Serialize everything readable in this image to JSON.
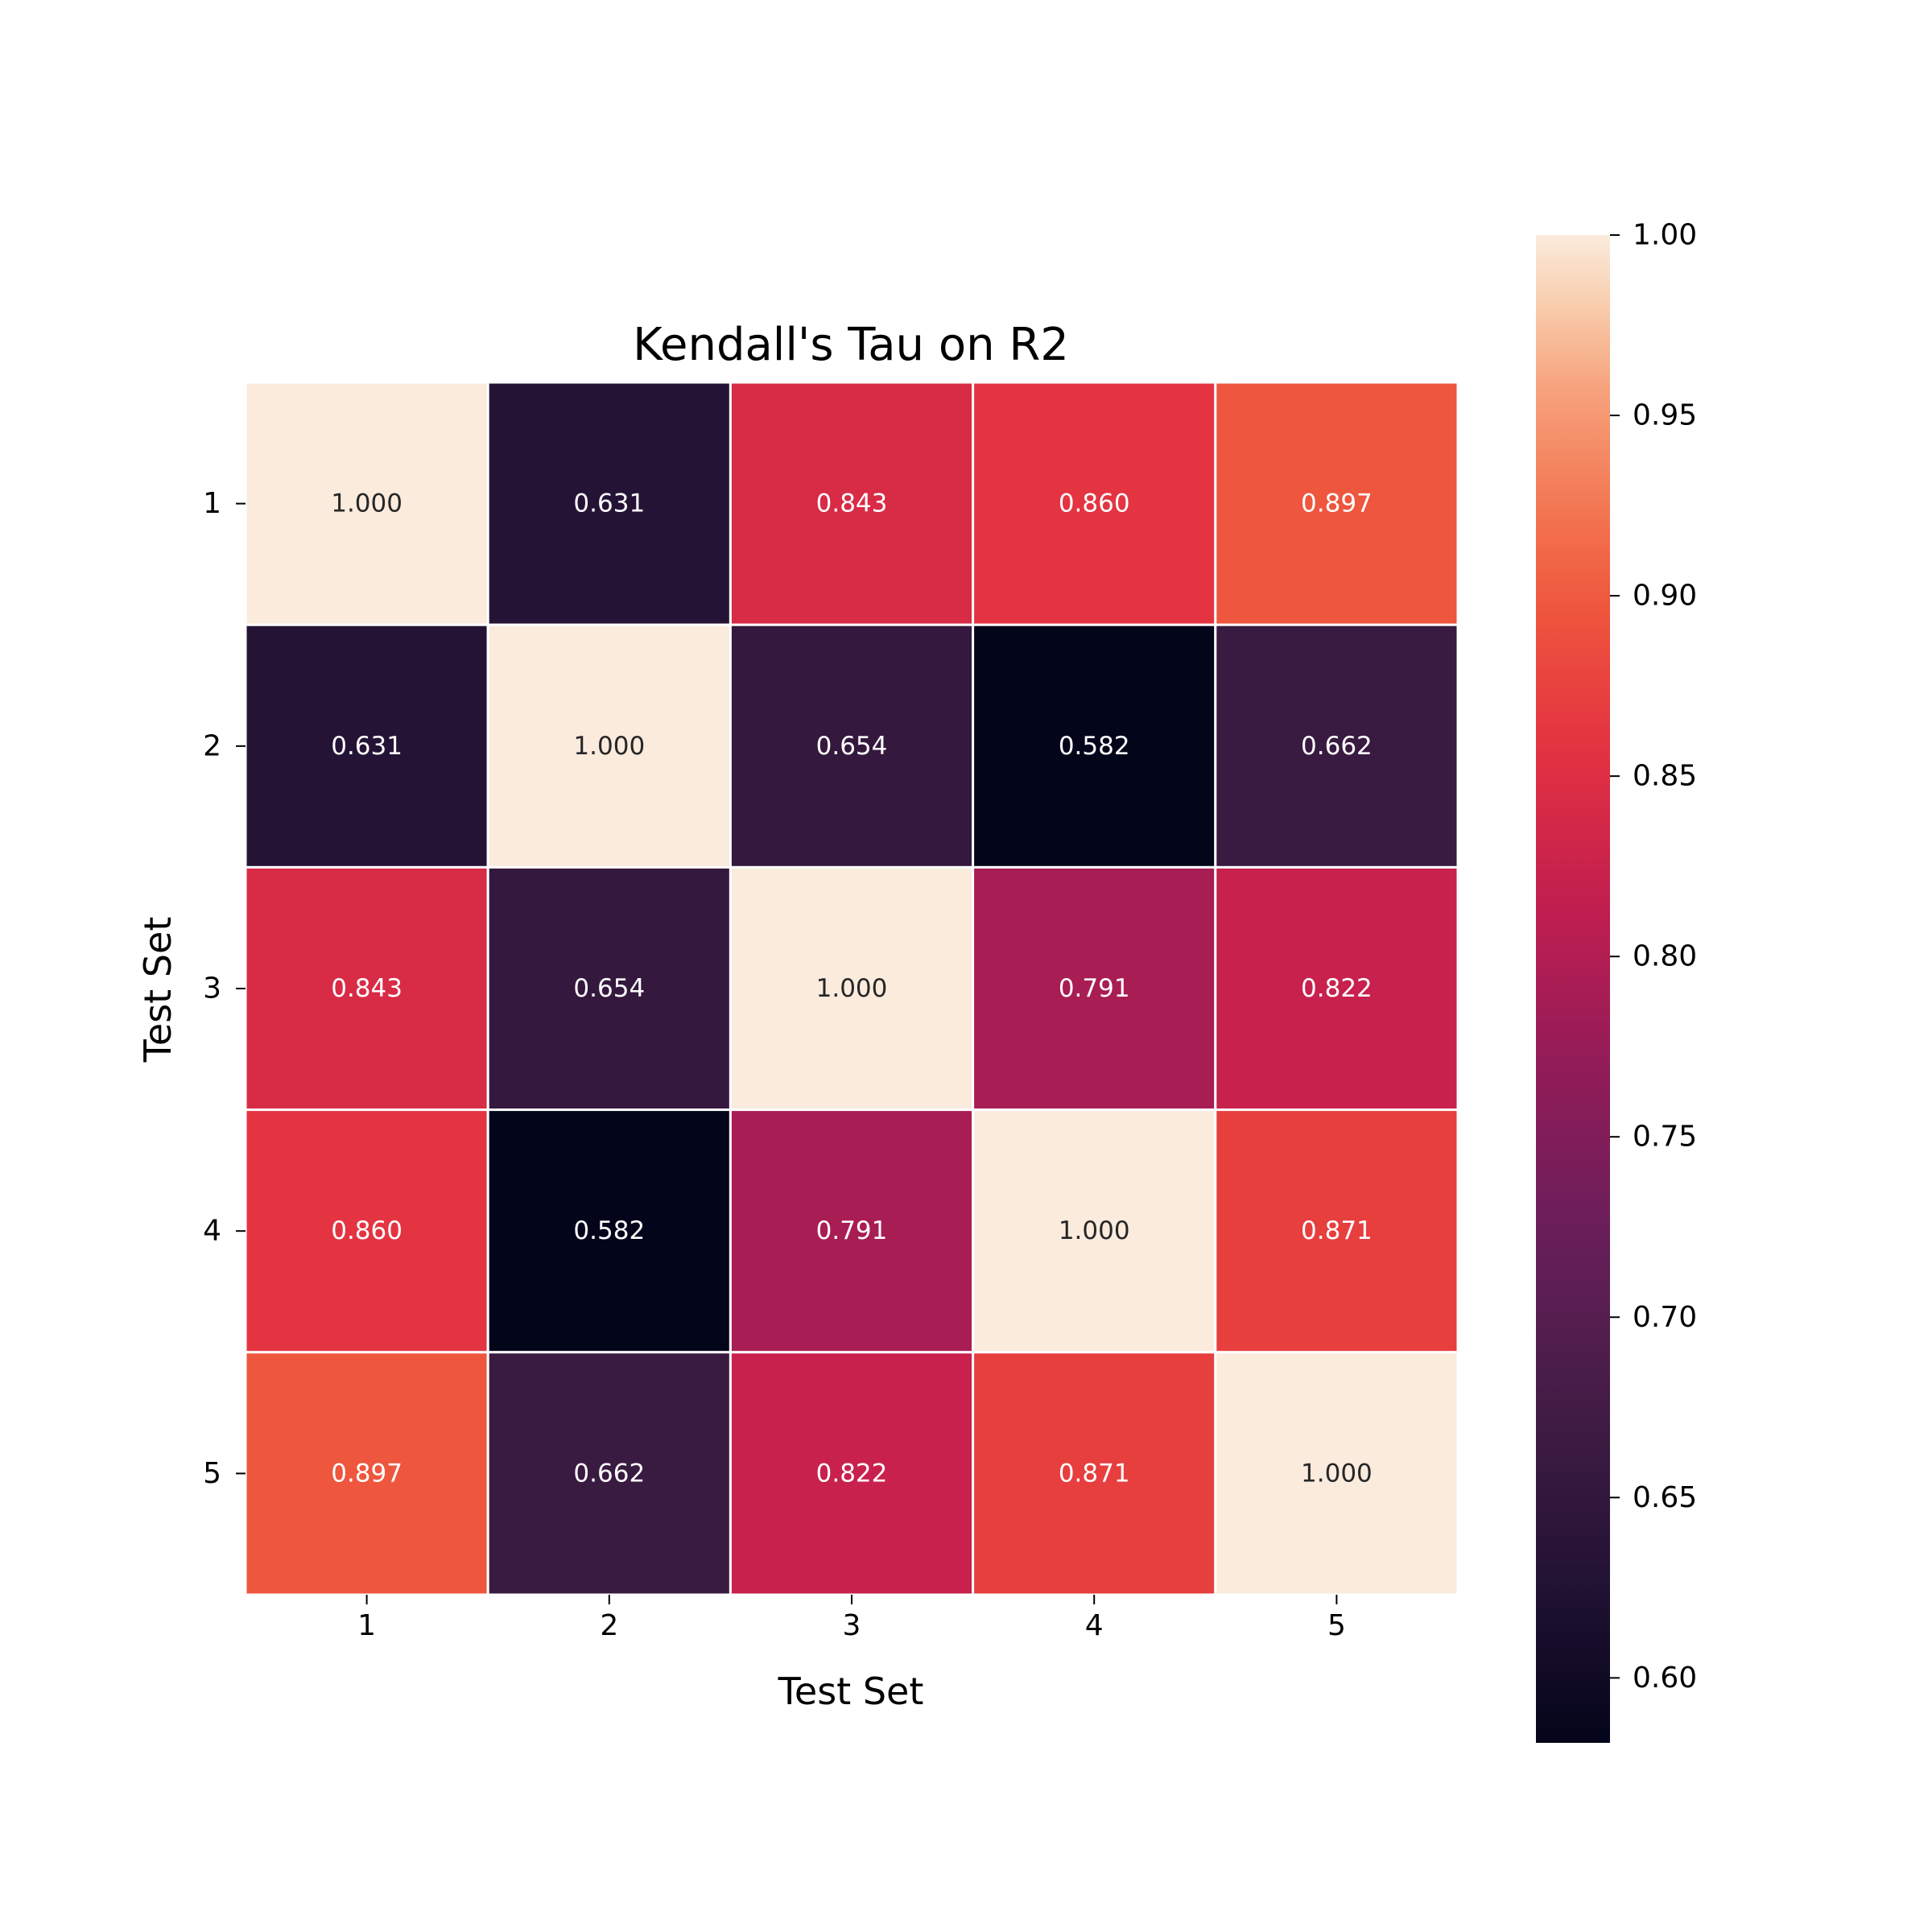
{
  "chart_data": {
    "type": "heatmap",
    "title": "Kendall's Tau on R2",
    "xlabel": "Test Set",
    "ylabel": "Test Set",
    "x_categories": [
      "1",
      "2",
      "3",
      "4",
      "5"
    ],
    "y_categories": [
      "1",
      "2",
      "3",
      "4",
      "5"
    ],
    "values": [
      [
        1.0,
        0.631,
        0.843,
        0.86,
        0.897
      ],
      [
        0.631,
        1.0,
        0.654,
        0.582,
        0.662
      ],
      [
        0.843,
        0.654,
        1.0,
        0.791,
        0.822
      ],
      [
        0.86,
        0.582,
        0.791,
        1.0,
        0.871
      ],
      [
        0.897,
        0.662,
        0.822,
        0.871,
        1.0
      ]
    ],
    "cell_labels": [
      [
        "1.000",
        "0.631",
        "0.843",
        "0.860",
        "0.897"
      ],
      [
        "0.631",
        "1.000",
        "0.654",
        "0.582",
        "0.662"
      ],
      [
        "0.843",
        "0.654",
        "1.000",
        "0.791",
        "0.822"
      ],
      [
        "0.860",
        "0.582",
        "0.791",
        "1.000",
        "0.871"
      ],
      [
        "0.897",
        "0.662",
        "0.822",
        "0.871",
        "1.000"
      ]
    ],
    "colormap": "rocket",
    "colorbar": {
      "range": [
        0.582,
        1.0
      ],
      "ticks": [
        0.6,
        0.65,
        0.7,
        0.75,
        0.8,
        0.85,
        0.9,
        0.95,
        1.0
      ],
      "tick_labels": [
        "0.60",
        "0.65",
        "0.70",
        "0.75",
        "0.80",
        "0.85",
        "0.90",
        "0.95",
        "1.00"
      ]
    },
    "annotation_colors": {
      "dark": "#262626",
      "light": "#ffffff"
    },
    "grid": false,
    "legend": "colorbar-right"
  }
}
